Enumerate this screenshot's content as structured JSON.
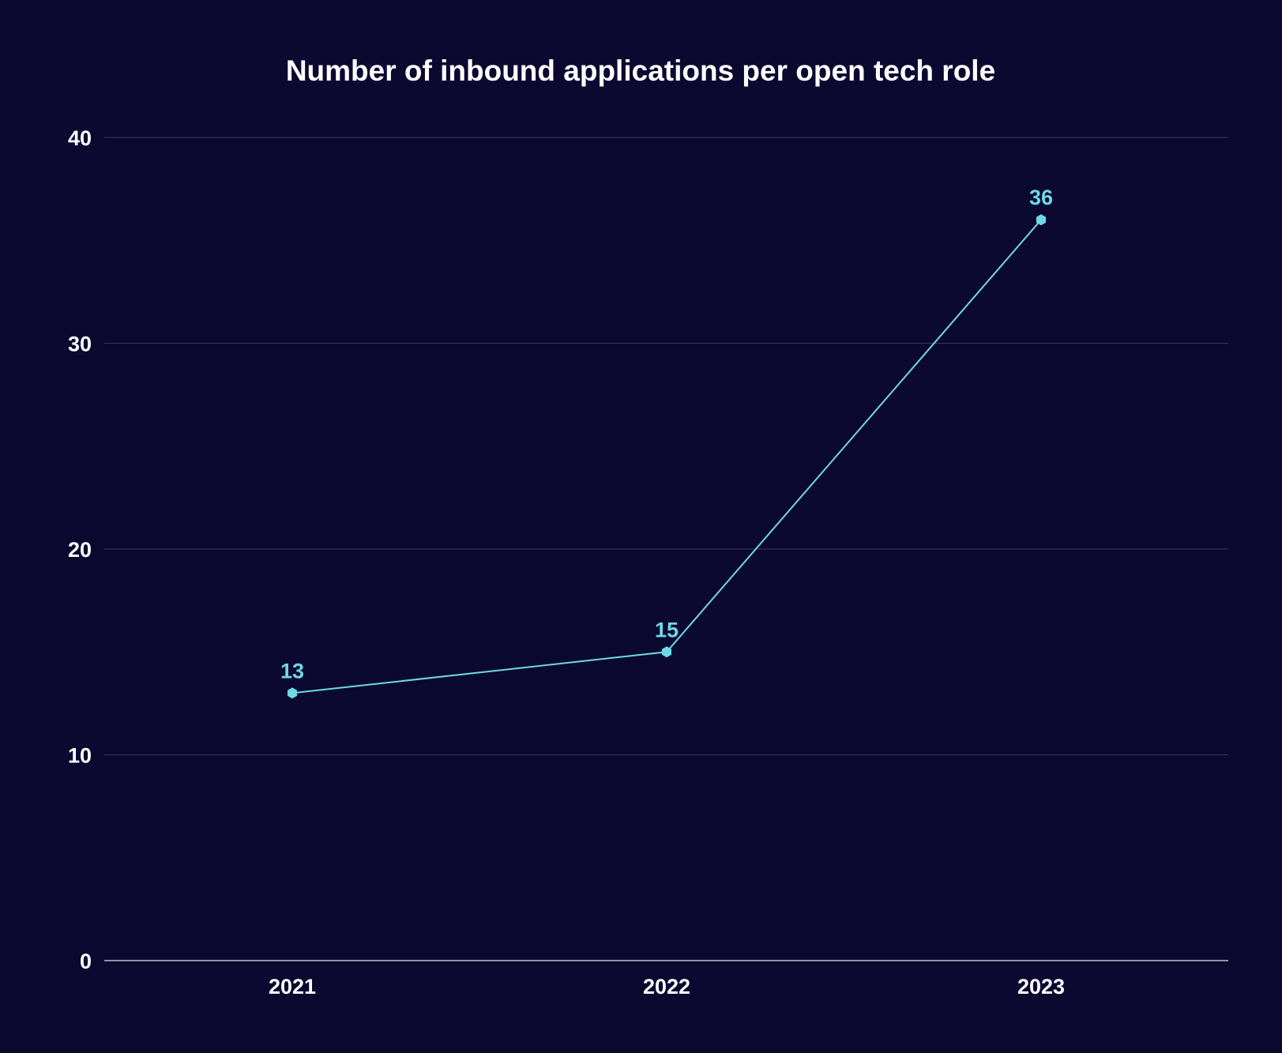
{
  "chart_data": {
    "type": "line",
    "title": "Number of inbound applications per open tech role",
    "categories": [
      "2021",
      "2022",
      "2023"
    ],
    "series": [
      {
        "name": "Inbound applications per open tech role",
        "values": [
          13,
          15,
          36
        ],
        "labels": [
          "13",
          "15",
          "36"
        ]
      }
    ],
    "xlabel": "",
    "ylabel": "",
    "ylim": [
      0,
      40
    ],
    "yticks": [
      0,
      10,
      20,
      30,
      40
    ],
    "ytick_labels": [
      "0",
      "10",
      "20",
      "30",
      "40"
    ],
    "grid": true,
    "legend": "none"
  },
  "colors": {
    "background": "#0b0930",
    "line": "#6fd8e4",
    "text": "#ffffff",
    "grid": "#3a385a"
  }
}
